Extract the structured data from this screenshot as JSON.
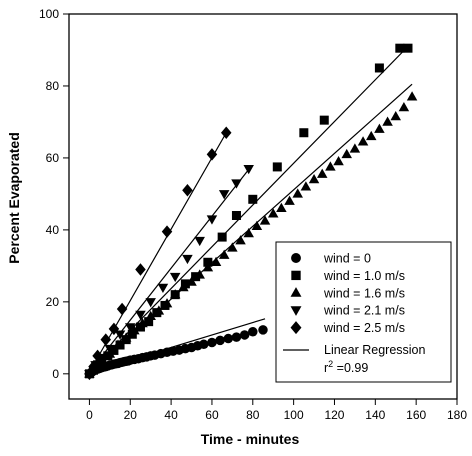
{
  "chart_data": {
    "type": "scatter",
    "xlabel": "Time - minutes",
    "ylabel": "Percent Evaporated",
    "xlim": [
      -10,
      180
    ],
    "ylim": [
      -7,
      100
    ],
    "xticks": [
      0,
      20,
      40,
      60,
      80,
      100,
      120,
      140,
      160,
      180
    ],
    "yticks": [
      0,
      20,
      40,
      60,
      80,
      100
    ],
    "grid": false,
    "legend_position": "bottom-right",
    "series": [
      {
        "name": "wind = 0",
        "marker": "circle",
        "x": [
          0,
          1,
          2,
          3,
          4,
          5,
          6,
          7,
          8,
          9,
          10,
          11,
          12,
          13,
          14,
          15,
          16,
          17,
          18,
          19,
          20,
          22,
          24,
          26,
          28,
          30,
          32,
          35,
          38,
          41,
          44,
          47,
          50,
          53,
          56,
          60,
          64,
          68,
          72,
          76,
          80,
          85
        ],
        "y": [
          0.0,
          0.4,
          0.8,
          1.1,
          1.3,
          1.5,
          1.7,
          1.9,
          2.0,
          2.2,
          2.4,
          2.5,
          2.7,
          2.8,
          2.9,
          3.1,
          3.2,
          3.4,
          3.5,
          3.6,
          3.8,
          4.0,
          4.2,
          4.5,
          4.7,
          5.0,
          5.2,
          5.6,
          6.0,
          6.3,
          6.6,
          7.0,
          7.3,
          7.8,
          8.2,
          8.7,
          9.3,
          9.8,
          10.2,
          10.8,
          11.7,
          12.2
        ]
      },
      {
        "name": "wind = 1.0 m/s",
        "marker": "square",
        "x": [
          0,
          2,
          4,
          6,
          9,
          12,
          15,
          18,
          21,
          25,
          29,
          33,
          37,
          42,
          47,
          52,
          58,
          65,
          72,
          80,
          92,
          105,
          115,
          142,
          152,
          156
        ],
        "y": [
          0.0,
          1.0,
          2.5,
          3.5,
          5.0,
          6.5,
          8.0,
          9.5,
          11.0,
          13.0,
          14.5,
          17.0,
          19.0,
          22.0,
          25.0,
          27.0,
          31.0,
          38.0,
          44.0,
          48.5,
          57.5,
          67.0,
          70.5,
          85.0,
          90.5,
          90.5
        ]
      },
      {
        "name": "wind = 1.6 m/s",
        "marker": "triangle-up",
        "x": [
          0,
          3,
          6,
          10,
          14,
          18,
          22,
          26,
          30,
          34,
          38,
          42,
          46,
          50,
          54,
          58,
          62,
          66,
          70,
          74,
          78,
          82,
          86,
          90,
          94,
          98,
          102,
          106,
          110,
          114,
          118,
          122,
          126,
          130,
          134,
          138,
          142,
          146,
          150,
          154,
          158
        ],
        "y": [
          0.0,
          2.0,
          3.5,
          5.5,
          8.0,
          10.0,
          12.0,
          14.0,
          16.0,
          17.5,
          19.5,
          22.0,
          24.0,
          25.5,
          27.5,
          29.5,
          31.0,
          33.0,
          35.0,
          37.0,
          39.0,
          41.0,
          42.5,
          44.5,
          46.0,
          48.0,
          50.0,
          52.0,
          54.0,
          55.5,
          57.5,
          59.0,
          61.0,
          62.5,
          64.5,
          66.0,
          68.0,
          70.0,
          71.5,
          74.0,
          77.0
        ]
      },
      {
        "name": "wind = 2.1 m/s",
        "marker": "triangle-down",
        "x": [
          0,
          3,
          6,
          10,
          15,
          20,
          25,
          30,
          36,
          42,
          48,
          54,
          60,
          66,
          72,
          78
        ],
        "y": [
          0.0,
          2.5,
          4.5,
          7.0,
          11.0,
          13.0,
          16.5,
          20.0,
          24.0,
          27.0,
          32.0,
          37.0,
          43.0,
          50.0,
          53.0,
          57.0
        ]
      },
      {
        "name": "wind = 2.5 m/s",
        "marker": "diamond",
        "x": [
          0,
          2,
          4,
          8,
          12,
          16,
          25,
          38,
          48,
          60,
          67
        ],
        "y": [
          0.0,
          2.0,
          5.0,
          9.5,
          12.5,
          18.0,
          29.0,
          39.5,
          51.0,
          61.0,
          67.0
        ]
      }
    ],
    "regression_lines": [
      {
        "x": [
          0,
          86
        ],
        "y": [
          0.4,
          15.3
        ]
      },
      {
        "x": [
          0,
          156
        ],
        "y": [
          0.5,
          91.0
        ]
      },
      {
        "x": [
          0,
          158
        ],
        "y": [
          0.5,
          80.5
        ]
      },
      {
        "x": [
          0,
          79
        ],
        "y": [
          0.5,
          57.5
        ]
      },
      {
        "x": [
          0,
          67
        ],
        "y": [
          0.5,
          67.0
        ]
      }
    ],
    "legend_line": {
      "label": "Linear Regression",
      "r2_prefix": "r",
      "r2_exponent": "2",
      "r2_value": " =0.99"
    }
  }
}
